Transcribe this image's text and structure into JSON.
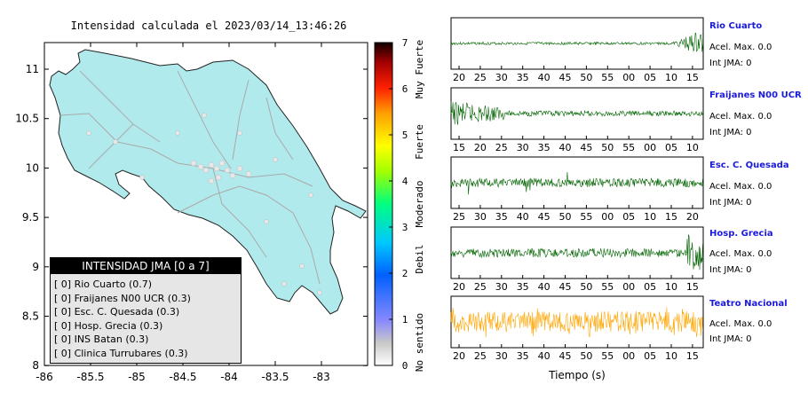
{
  "map": {
    "title": "Intensidad calculada el 2023/03/14_13:46:26",
    "x_ticks": [
      "-86",
      "-85.5",
      "-85",
      "-84.5",
      "-84",
      "-83.5",
      "-83"
    ],
    "y_ticks": [
      "11",
      "10.5",
      "10",
      "9.5",
      "9",
      "8.5",
      "8"
    ]
  },
  "colorbar": {
    "ticks": [
      "0",
      "1",
      "2",
      "3",
      "4",
      "5",
      "6",
      "7"
    ],
    "labels": [
      "No sentido",
      "Debil",
      "Moderado",
      "Fuerte",
      "Muy Fuerte"
    ],
    "colors": [
      "#ffffff",
      "#8080ff",
      "#00a0ff",
      "#00ffa0",
      "#80ff00",
      "#ffff00",
      "#ff8000",
      "#ff0000",
      "#800000",
      "#000000"
    ]
  },
  "legend": {
    "title": "INTENSIDAD JMA [0 a 7]",
    "items": [
      "[ 0]  Rio Cuarto (0.7)",
      "[ 0]  Fraijanes N00 UCR (0.3)",
      "[ 0]  Esc. C. Quesada (0.3)",
      "[ 0]  Hosp. Grecia (0.3)",
      "[ 0]  INS Batan (0.3)",
      "[ 0]  Clinica Turrubares (0.3)"
    ]
  },
  "stations": [
    {
      "name": "Rio Cuarto",
      "acel": "Acel. Max. 0.0",
      "jma": "Int JMA: 0",
      "color": "#006400",
      "ticks": [
        "20",
        "25",
        "30",
        "35",
        "40",
        "45",
        "50",
        "55",
        "00",
        "05",
        "10",
        "15"
      ]
    },
    {
      "name": "Fraijanes N00 UCR",
      "acel": "Acel. Max. 0.0",
      "jma": "Int JMA: 0",
      "color": "#006400",
      "ticks": [
        "15",
        "20",
        "25",
        "30",
        "35",
        "40",
        "45",
        "50",
        "55",
        "00",
        "05",
        "10"
      ]
    },
    {
      "name": "Esc. C. Quesada",
      "acel": "Acel. Max. 0.0",
      "jma": "Int JMA: 0",
      "color": "#006400",
      "ticks": [
        "25",
        "30",
        "35",
        "40",
        "45",
        "50",
        "55",
        "00",
        "05",
        "10",
        "15",
        "20"
      ]
    },
    {
      "name": "Hosp. Grecia",
      "acel": "Acel. Max. 0.0",
      "jma": "Int JMA: 0",
      "color": "#006400",
      "ticks": [
        "20",
        "25",
        "30",
        "35",
        "40",
        "45",
        "50",
        "55",
        "00",
        "05",
        "10",
        "15"
      ]
    },
    {
      "name": "Teatro Nacional",
      "acel": "Acel. Max. 0.0",
      "jma": "Int JMA: 0",
      "color": "#ffa500",
      "ticks": [
        "20",
        "25",
        "30",
        "35",
        "40",
        "45",
        "50",
        "55",
        "00",
        "05",
        "10",
        "15"
      ]
    }
  ],
  "xlabel": "Tiempo (s)",
  "chart_data": {
    "type": "line",
    "title": "Intensidad calculada el 2023/03/14_13:46:26",
    "xlabel": "Tiempo (s)",
    "series": [
      {
        "name": "Rio Cuarto",
        "values": [
          0.7
        ]
      },
      {
        "name": "Fraijanes N00 UCR",
        "values": [
          0.3
        ]
      },
      {
        "name": "Esc. C. Quesada",
        "values": [
          0.3
        ]
      },
      {
        "name": "Hosp. Grecia",
        "values": [
          0.3
        ]
      },
      {
        "name": "INS Batan",
        "values": [
          0.3
        ]
      },
      {
        "name": "Clinica Turrubares",
        "values": [
          0.3
        ]
      }
    ]
  }
}
